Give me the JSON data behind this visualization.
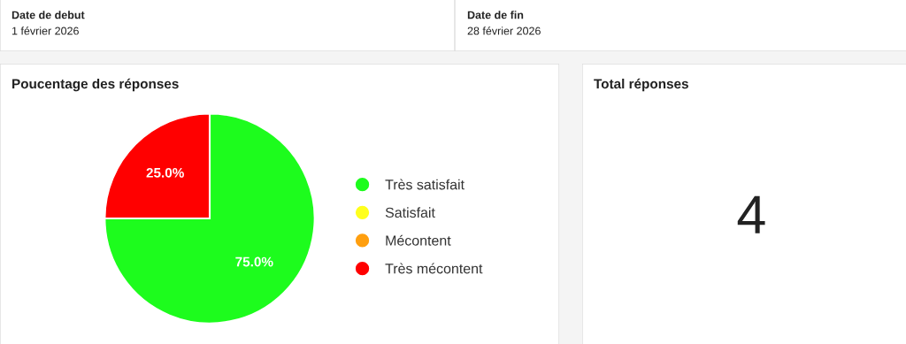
{
  "chart_data": [
    {
      "type": "other",
      "annotations": [
        "Date de debut",
        "1 février 2026",
        "Date de fin",
        "28 février 2026"
      ]
    },
    {
      "type": "pie",
      "title": "Poucentage des réponses",
      "categories": [
        "Très satisfait",
        "Satisfait",
        "Mécontent",
        "Très mécontent"
      ],
      "values": [
        75,
        0,
        0,
        25
      ],
      "colors": [
        "#1dfc1d",
        "#ffff1d",
        "#ff9f0f",
        "#ff0000"
      ],
      "value_labels": [
        "75.0%",
        null,
        null,
        "25.0%"
      ],
      "legend": "right"
    },
    {
      "type": "other",
      "title": "Total réponses",
      "annotations": [
        "4"
      ]
    }
  ]
}
